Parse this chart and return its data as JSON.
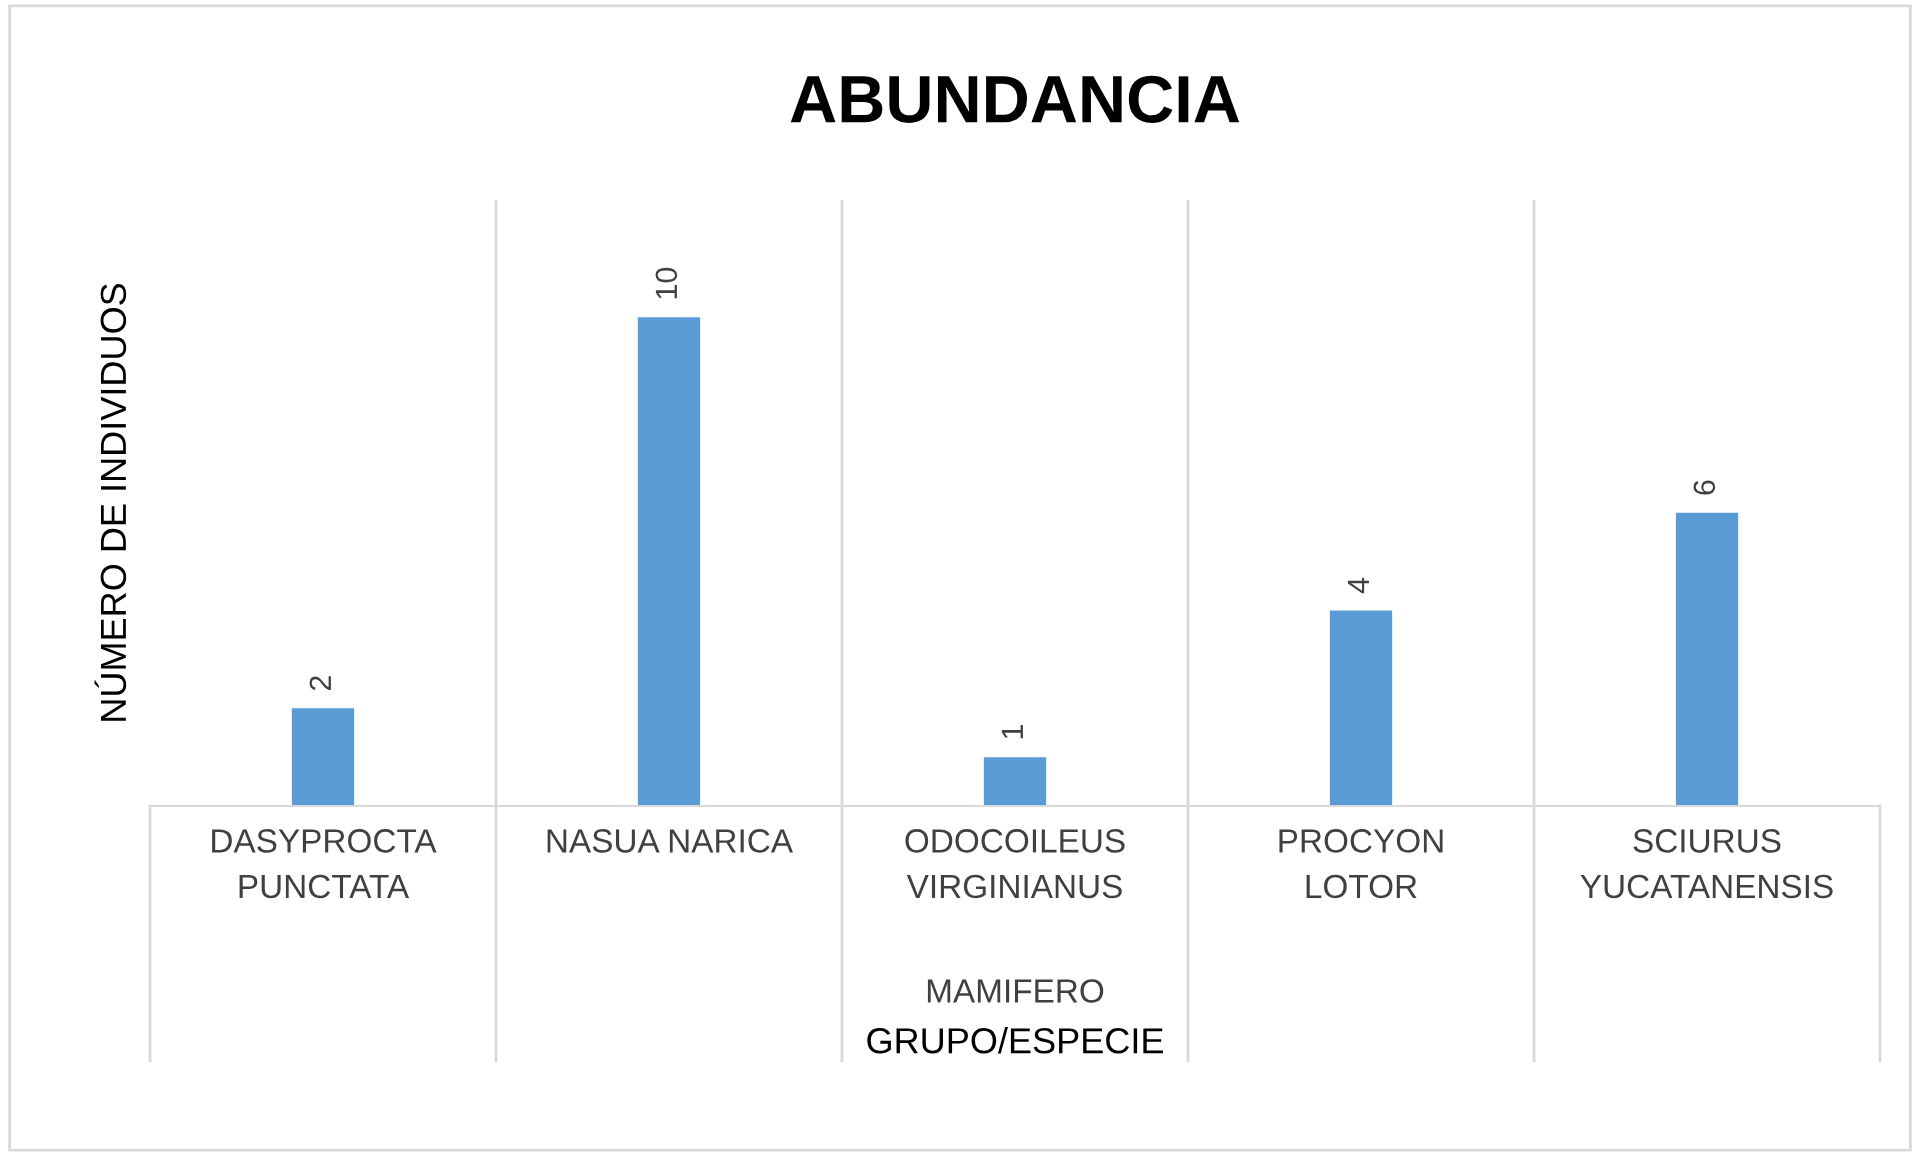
{
  "chart_data": {
    "type": "bar",
    "title": "ABUNDANCIA",
    "xlabel": "GRUPO/ESPECIE",
    "ylabel": "NÚMERO DE INDIVIDUOS",
    "categories": [
      "DASYPROCTA\nPUNCTATA",
      "NASUA NARICA",
      "ODOCOILEUS\nVIRGINIANUS",
      "PROCYON\nLOTOR",
      "SCIURUS\nYUCATANENSIS"
    ],
    "values": [
      2,
      10,
      1,
      4,
      6
    ],
    "color": "#5b9bd5",
    "data_labels": true,
    "grid": false,
    "legend": false,
    "annotations": [
      "MAMIFERO"
    ]
  }
}
